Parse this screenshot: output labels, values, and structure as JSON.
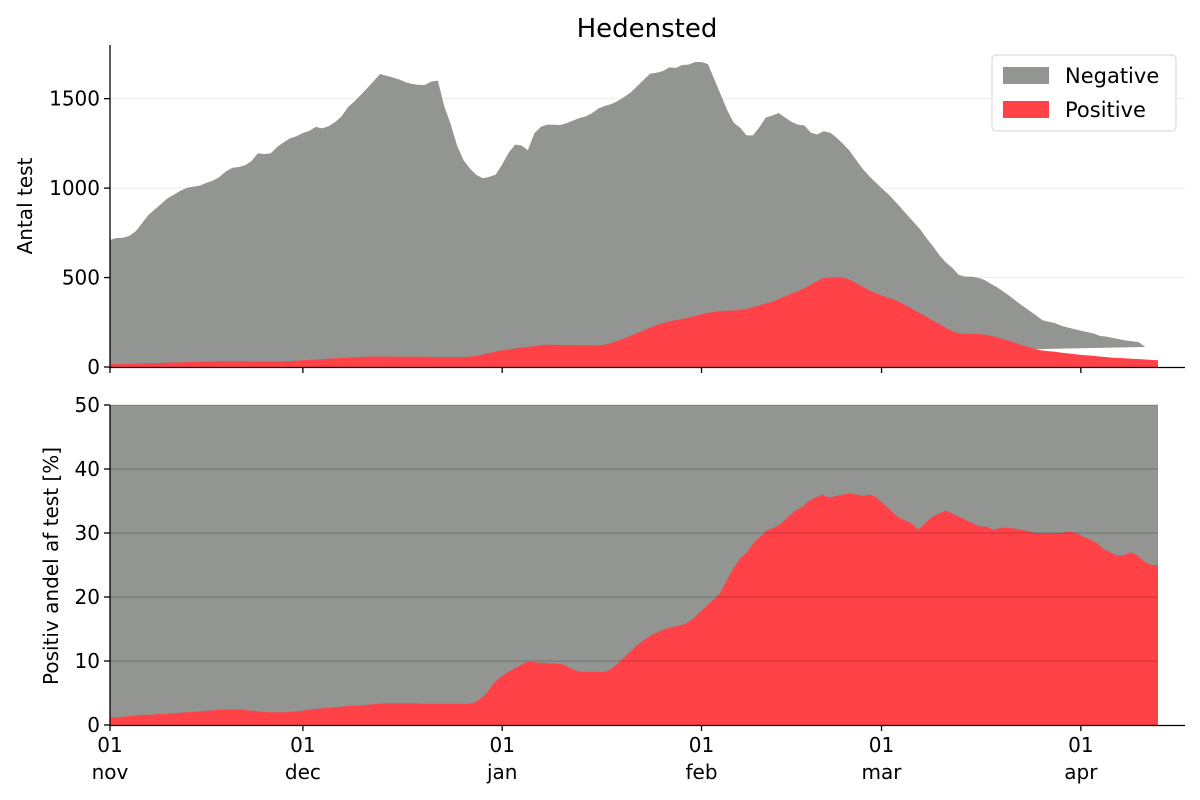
{
  "chart_data": [
    {
      "type": "area",
      "stacked": true,
      "title": "Hedensted",
      "ylabel": "Antal test",
      "xlabel": "",
      "ylim": [
        0,
        1800
      ],
      "yticks": [
        0,
        500,
        1000,
        1500
      ],
      "ytick_labels": [
        "0",
        "500",
        "1000",
        "1500"
      ],
      "xlim": [
        0,
        152
      ],
      "grid": "horizontal",
      "legend": {
        "placement": "top-right",
        "entries": [
          "Negative",
          "Positive"
        ]
      },
      "x_start_label": "01 nov",
      "x_step_days": 1,
      "series": [
        {
          "name": "Positive",
          "color": "#ff4148",
          "values": [
            15,
            16,
            17,
            18,
            19,
            20,
            21,
            22,
            23,
            24,
            25,
            26,
            27,
            28,
            29,
            30,
            31,
            32,
            33,
            33,
            33,
            32,
            31,
            30,
            30,
            30,
            30,
            31,
            33,
            35,
            38,
            40,
            42,
            44,
            46,
            48,
            50,
            52,
            54,
            56,
            58,
            58,
            58,
            58,
            58,
            57,
            57,
            57,
            57,
            57,
            56,
            56,
            56,
            56,
            56,
            56,
            58,
            63,
            70,
            78,
            86,
            93,
            98,
            103,
            108,
            112,
            117,
            122,
            125,
            124,
            123,
            123,
            122,
            122,
            121,
            120,
            121,
            125,
            135,
            148,
            160,
            175,
            190,
            205,
            220,
            235,
            245,
            255,
            262,
            268,
            275,
            285,
            295,
            303,
            308,
            312,
            315,
            316,
            318,
            325,
            335,
            345,
            355,
            365,
            380,
            395,
            410,
            425,
            440,
            460,
            480,
            498,
            500,
            502,
            498,
            490,
            470,
            450,
            430,
            415,
            400,
            388,
            375,
            360,
            340,
            320,
            300,
            280,
            260,
            240,
            220,
            200,
            190,
            185,
            185,
            184,
            182,
            175,
            165,
            155,
            145,
            132,
            120,
            110,
            100,
            92,
            88,
            85,
            80,
            76,
            72,
            68,
            65,
            62,
            58,
            55,
            52,
            50,
            48,
            46,
            44,
            42,
            40,
            38
          ]
        },
        {
          "name": "Negative",
          "color": "#939592",
          "values": [
            695,
            705,
            705,
            715,
            740,
            785,
            830,
            860,
            890,
            920,
            940,
            960,
            975,
            980,
            985,
            1000,
            1010,
            1030,
            1060,
            1080,
            1085,
            1095,
            1120,
            1165,
            1160,
            1165,
            1200,
            1225,
            1245,
            1255,
            1270,
            1280,
            1300,
            1290,
            1300,
            1320,
            1350,
            1400,
            1430,
            1465,
            1500,
            1540,
            1580,
            1570,
            1560,
            1550,
            1535,
            1525,
            1520,
            1520,
            1540,
            1545,
            1400,
            1300,
            1180,
            1100,
            1050,
            1010,
            985,
            985,
            990,
            1040,
            1100,
            1140,
            1130,
            1100,
            1190,
            1220,
            1230,
            1230,
            1230,
            1240,
            1255,
            1270,
            1280,
            1300,
            1325,
            1335,
            1335,
            1340,
            1350,
            1360,
            1380,
            1400,
            1420,
            1410,
            1410,
            1420,
            1410,
            1420,
            1415,
            1420,
            1410,
            1390,
            1300,
            1210,
            1120,
            1050,
            1020,
            970,
            960,
            995,
            1040,
            1040,
            1040,
            1000,
            960,
            930,
            910,
            850,
            820,
            820,
            810,
            780,
            750,
            720,
            690,
            660,
            640,
            620,
            600,
            580,
            555,
            530,
            510,
            490,
            470,
            440,
            415,
            385,
            365,
            355,
            325,
            320,
            320,
            315,
            305,
            290,
            280,
            265,
            250,
            235,
            220,
            205,
            190,
            170,
            165,
            160,
            150,
            145,
            140,
            135,
            130,
            125,
            115,
            115,
            110,
            105,
            100,
            98,
            95,
            70
          ]
        }
      ]
    },
    {
      "type": "area",
      "stacked": true,
      "title": "",
      "ylabel": "Positiv andel af test [%]",
      "xlabel": "",
      "ylim": [
        0,
        50
      ],
      "yticks": [
        0,
        10,
        20,
        30,
        40,
        50
      ],
      "ytick_labels": [
        "0",
        "10",
        "20",
        "30",
        "40",
        "50"
      ],
      "xlim": [
        0,
        152
      ],
      "grid": "horizontal",
      "background_series_color": "#939592",
      "x_start_label": "01 nov",
      "x_step_days": 1,
      "xticks": [
        {
          "day": 0,
          "day_label": "01",
          "month_label": "nov"
        },
        {
          "day": 30,
          "day_label": "01",
          "month_label": "dec"
        },
        {
          "day": 61,
          "day_label": "01",
          "month_label": "jan"
        },
        {
          "day": 92,
          "day_label": "01",
          "month_label": "feb"
        },
        {
          "day": 120,
          "day_label": "01",
          "month_label": "mar"
        },
        {
          "day": 151,
          "day_label": "01",
          "month_label": "apr"
        }
      ],
      "series": [
        {
          "name": "Positive",
          "color": "#ff4148",
          "values": [
            1.2,
            1.2,
            1.3,
            1.4,
            1.5,
            1.6,
            1.6,
            1.7,
            1.7,
            1.8,
            1.9,
            2.0,
            2.0,
            2.1,
            2.2,
            2.3,
            2.4,
            2.4,
            2.4,
            2.4,
            2.3,
            2.2,
            2.1,
            2.0,
            2.0,
            2.0,
            2.0,
            2.1,
            2.2,
            2.4,
            2.5,
            2.6,
            2.7,
            2.8,
            2.9,
            3.0,
            3.0,
            3.1,
            3.2,
            3.3,
            3.4,
            3.4,
            3.4,
            3.4,
            3.4,
            3.4,
            3.3,
            3.3,
            3.3,
            3.3,
            3.3,
            3.3,
            3.3,
            3.4,
            4.0,
            5.0,
            6.5,
            7.5,
            8.2,
            8.8,
            9.4,
            9.9,
            9.8,
            9.7,
            9.6,
            9.6,
            9.5,
            9.0,
            8.5,
            8.3,
            8.3,
            8.3,
            8.3,
            8.6,
            9.5,
            10.5,
            11.5,
            12.5,
            13.3,
            14.0,
            14.5,
            15.0,
            15.3,
            15.5,
            15.8,
            16.5,
            17.5,
            18.5,
            19.5,
            20.5,
            22.5,
            24.5,
            26.0,
            27.0,
            28.5,
            29.5,
            30.5,
            30.8,
            31.5,
            32.5,
            33.5,
            34.0,
            35.0,
            35.5,
            36.0,
            35.5,
            35.8,
            36.0,
            36.2,
            36.0,
            35.8,
            36.0,
            35.5,
            34.5,
            33.5,
            32.5,
            32.0,
            31.5,
            30.5,
            31.5,
            32.5,
            33.0,
            33.5,
            33.0,
            32.5,
            32.0,
            31.5,
            31.0,
            31.0,
            30.5,
            30.8,
            30.8,
            30.7,
            30.5,
            30.3,
            30.0,
            30.0,
            30.0,
            30.0,
            30.0,
            30.2,
            30.0,
            29.5,
            29.0,
            28.5,
            27.5,
            27.0,
            26.5,
            26.5,
            27.0,
            26.5,
            25.5,
            25.0,
            25.0
          ]
        }
      ]
    }
  ]
}
